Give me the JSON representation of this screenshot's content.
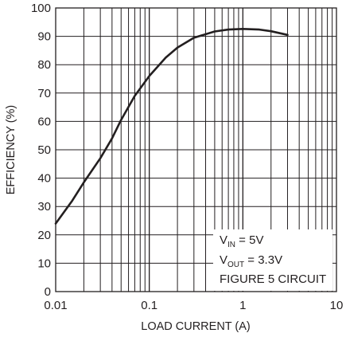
{
  "chart_data": {
    "type": "line",
    "title": "",
    "xlabel": "LOAD CURRENT (A)",
    "ylabel": "EFFICIENCY (%)",
    "xscale": "log",
    "xlim": [
      0.01,
      10
    ],
    "ylim": [
      0,
      100
    ],
    "xticks": [
      0.01,
      0.1,
      1,
      10
    ],
    "xtick_labels": [
      "0.01",
      "0.1",
      "1",
      "10"
    ],
    "yticks": [
      0,
      10,
      20,
      30,
      40,
      50,
      60,
      70,
      80,
      90,
      100
    ],
    "ytick_labels": [
      "0",
      "10",
      "20",
      "30",
      "40",
      "50",
      "60",
      "70",
      "80",
      "90",
      "100"
    ],
    "grid": true,
    "series": [
      {
        "x": [
          0.01,
          0.015,
          0.02,
          0.03,
          0.04,
          0.05,
          0.07,
          0.1,
          0.15,
          0.2,
          0.3,
          0.5,
          0.7,
          1.0,
          1.5,
          2.0,
          3.0
        ],
        "y": [
          24,
          32,
          38.5,
          47,
          54,
          60.5,
          69,
          76,
          82.5,
          86,
          89.5,
          91.7,
          92.4,
          92.6,
          92.4,
          91.8,
          90.5
        ]
      }
    ],
    "annotation": {
      "line1_main": "V",
      "line1_sub": "IN",
      "line1_rest": " = 5V",
      "line2_main": "V",
      "line2_sub": "OUT",
      "line2_rest": " = 3.3V",
      "line3": "FIGURE 5 CIRCUIT"
    },
    "colors": {
      "line": "#231f20",
      "grid": "#231f20",
      "background": "#ffffff"
    }
  }
}
